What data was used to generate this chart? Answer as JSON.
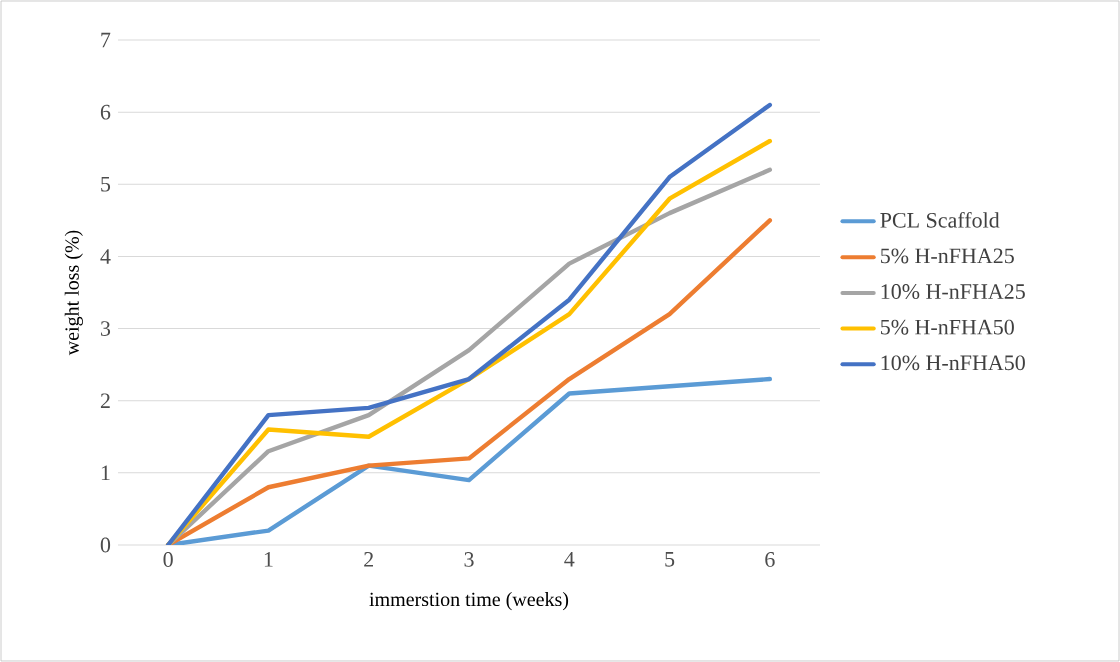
{
  "chart_data": {
    "type": "line",
    "xlabel": "immerstion time (weeks)",
    "ylabel": "weight loss (%)",
    "x": [
      0,
      1,
      2,
      3,
      4,
      5,
      6
    ],
    "xlim": [
      -0.5,
      6.5
    ],
    "xticks": [
      0,
      1,
      2,
      3,
      4,
      5,
      6
    ],
    "ylim": [
      0,
      7
    ],
    "yticks": [
      0,
      1,
      2,
      3,
      4,
      5,
      6,
      7
    ],
    "grid": "y",
    "legend": "right",
    "marker": "none",
    "line_style": "solid",
    "series": [
      {
        "name": "PCL Scaffold",
        "color": "#5b9bd5",
        "values": [
          0,
          0.2,
          1.1,
          0.9,
          2.1,
          2.2,
          2.3
        ]
      },
      {
        "name": "5% H-nFHA25",
        "color": "#ed7d31",
        "values": [
          0,
          0.8,
          1.1,
          1.2,
          2.3,
          3.2,
          4.5
        ]
      },
      {
        "name": "10% H-nFHA25",
        "color": "#a5a5a5",
        "values": [
          0,
          1.3,
          1.8,
          2.7,
          3.9,
          4.6,
          5.2
        ]
      },
      {
        "name": "5% H-nFHA50",
        "color": "#ffc000",
        "values": [
          0,
          1.6,
          1.5,
          2.3,
          3.2,
          4.8,
          5.6
        ]
      },
      {
        "name": "10% H-nFHA50",
        "color": "#4472c4",
        "values": [
          0,
          1.8,
          1.9,
          2.3,
          3.4,
          5.1,
          6.1
        ]
      }
    ]
  }
}
